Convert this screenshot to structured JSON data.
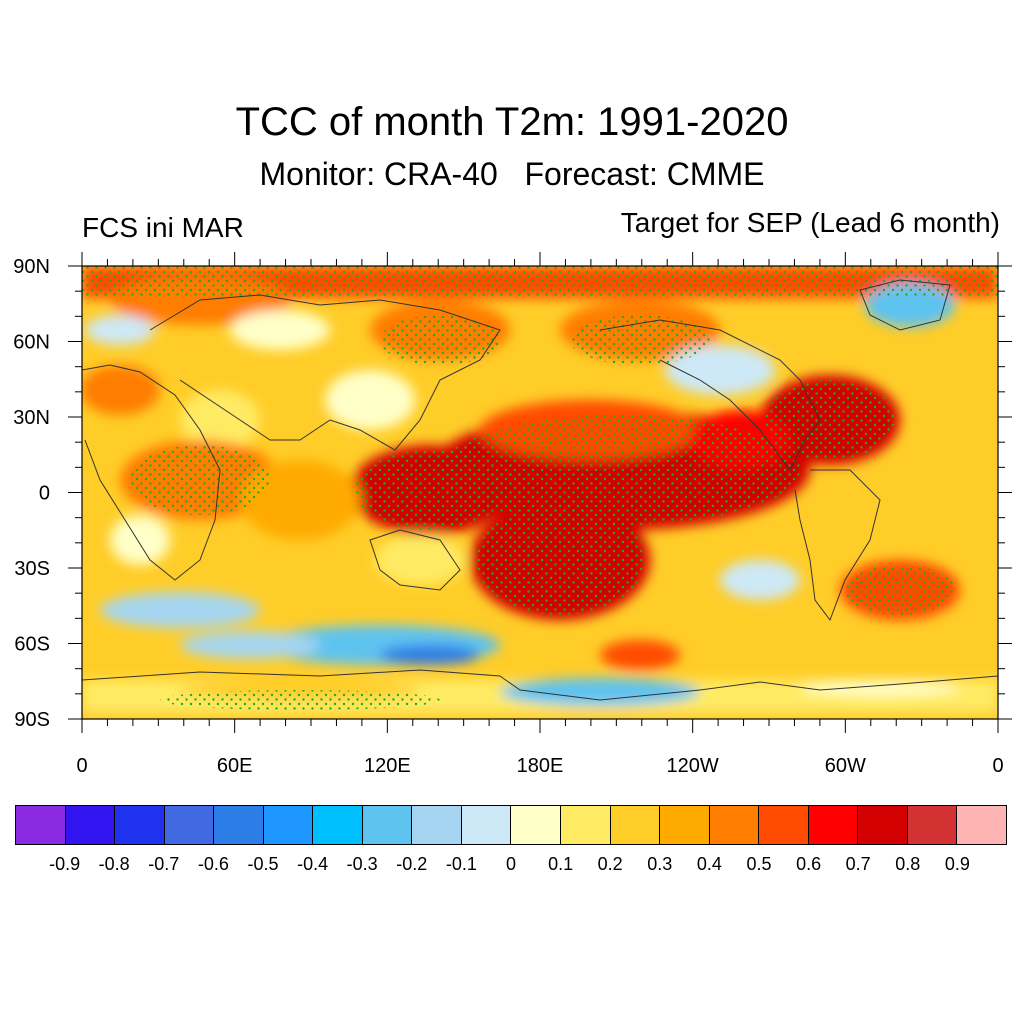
{
  "header": {
    "title": "TCC of month T2m: 1991-2020",
    "subtitle": "Monitor: CRA-40   Forecast: CMME",
    "left_label": "FCS ini MAR",
    "right_label": "Target for SEP (Lead 6 month)"
  },
  "map": {
    "projection": "cylindrical-equidistant",
    "lat_labels": [
      "90N",
      "60N",
      "30N",
      "0",
      "30S",
      "60S",
      "90S"
    ],
    "lon_labels": [
      "0",
      "60E",
      "120E",
      "180E",
      "120W",
      "60W",
      "0"
    ],
    "lat_values": [
      90,
      60,
      30,
      0,
      -30,
      -60,
      -90
    ],
    "lon_values": [
      0,
      60,
      120,
      180,
      240,
      300,
      360
    ],
    "stipple_color": "#22aa22",
    "coastline_color": "#333333"
  },
  "colorbar": {
    "labels": [
      "-0.9",
      "-0.8",
      "-0.7",
      "-0.6",
      "-0.5",
      "-0.4",
      "-0.3",
      "-0.2",
      "-0.1",
      "0",
      "0.1",
      "0.2",
      "0.3",
      "0.4",
      "0.5",
      "0.6",
      "0.7",
      "0.8",
      "0.9"
    ],
    "colors": [
      "#8a2be2",
      "#3214f0",
      "#1e32f0",
      "#4169e1",
      "#2d7de6",
      "#1e96ff",
      "#00bfff",
      "#5fc3f0",
      "#a5d5f0",
      "#cde8f6",
      "#ffffc8",
      "#ffeb64",
      "#ffcd28",
      "#ffaa00",
      "#ff7d00",
      "#ff4b00",
      "#ff0000",
      "#d20000",
      "#d23232",
      "#ffb4b4"
    ]
  }
}
